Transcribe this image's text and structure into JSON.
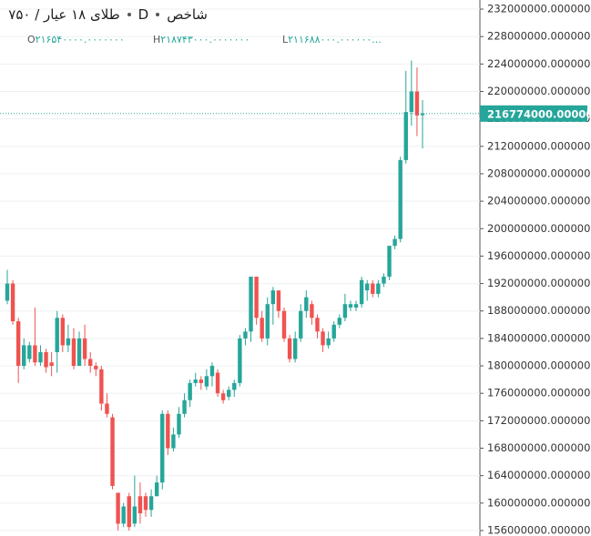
{
  "chart_data": {
    "type": "candlestick",
    "header": {
      "exchange": "شاخص",
      "interval": "D",
      "symbol": "طلای ۱۸ عیار / ۷۵۰"
    },
    "ohlc_legend": [
      {
        "key": "O",
        "text": "۲۱۶۵۴۰۰۰۰.۰۰۰۰۰۰۰"
      },
      {
        "key": "H",
        "text": "۲۱۸۷۴۳۰۰۰.۰۰۰۰۰۰۰"
      },
      {
        "key": "L",
        "text": "۲۱۱۶۸۸۰۰۰.۰۰۰۰۰۰..."
      }
    ],
    "up_color": "#26a69a",
    "down_color": "#ef5350",
    "grid": true,
    "ylim": [
      155200000,
      233330000
    ],
    "yticks": [
      {
        "value": 156000000,
        "label": "156000000.0000000"
      },
      {
        "value": 160000000,
        "label": "160000000.0000000"
      },
      {
        "value": 164000000,
        "label": "164000000.0000000"
      },
      {
        "value": 168000000,
        "label": "168000000.0000000"
      },
      {
        "value": 172000000,
        "label": "172000000.0000000"
      },
      {
        "value": 176000000,
        "label": "176000000.0000000"
      },
      {
        "value": 180000000,
        "label": "180000000.0000000"
      },
      {
        "value": 184000000,
        "label": "184000000.0000000"
      },
      {
        "value": 188000000,
        "label": "188000000.0000000"
      },
      {
        "value": 192000000,
        "label": "192000000.0000000"
      },
      {
        "value": 196000000,
        "label": "196000000.0000000"
      },
      {
        "value": 200000000,
        "label": "200000000.0000000"
      },
      {
        "value": 204000000,
        "label": "204000000.0000000"
      },
      {
        "value": 208000000,
        "label": "208000000.0000000"
      },
      {
        "value": 212000000,
        "label": "212000000.0000000"
      },
      {
        "value": 216000000,
        "label": "216000000.0000000"
      },
      {
        "value": 220000000,
        "label": "220000000.0000000"
      },
      {
        "value": 224000000,
        "label": "224000000.0000000"
      },
      {
        "value": 228000000,
        "label": "228000000.0000000"
      },
      {
        "value": 232000000,
        "label": "232000000.0000000"
      }
    ],
    "last_price": {
      "value": 216774000,
      "label": "216774000.0000000"
    },
    "open": [
      189500000,
      192000000,
      186500000,
      180000000,
      181000000,
      183000000,
      180500000,
      182000000,
      180500000,
      182000000,
      187000000,
      183000000,
      184000000,
      180000000,
      184000000,
      181000000,
      180000000,
      179500000,
      174500000,
      172500000,
      161500000,
      157000000,
      161000000,
      157000000,
      161000000,
      161000000,
      159000000,
      161000000,
      163000000,
      173000000,
      168000000,
      170000000,
      173000000,
      175000000,
      177500000,
      178000000,
      177000000,
      178500000,
      179000000,
      176000000,
      175500000,
      176500000,
      177500000,
      184000000,
      185000000,
      193000000,
      187000000,
      184000000,
      189000000,
      191000000,
      188000000,
      184000000,
      181000000,
      184000000,
      188000000,
      189000000,
      187000000,
      185000000,
      183000000,
      184000000,
      186000000,
      187000000,
      188500000,
      188500000,
      189000000,
      191000000,
      192000000,
      190500000,
      192000000,
      193000000,
      197500000,
      198500000,
      210000000,
      217000000,
      220000000,
      216540000
    ],
    "high": [
      194000000,
      192500000,
      187000000,
      184000000,
      183500000,
      188500000,
      183000000,
      182500000,
      182000000,
      188000000,
      187500000,
      186000000,
      185500000,
      185000000,
      186000000,
      182000000,
      180500000,
      180000000,
      176000000,
      173000000,
      161500000,
      160000000,
      161500000,
      164000000,
      163000000,
      161500000,
      162000000,
      164000000,
      173500000,
      173500000,
      171000000,
      174000000,
      176000000,
      178000000,
      179000000,
      178500000,
      179500000,
      180500000,
      179500000,
      176500000,
      177000000,
      178000000,
      184500000,
      185500000,
      193000000,
      193000000,
      188000000,
      190000000,
      191500000,
      191000000,
      188500000,
      184500000,
      185000000,
      189000000,
      191000000,
      189500000,
      187500000,
      185500000,
      185000000,
      186500000,
      187500000,
      190500000,
      189500000,
      189500000,
      193000000,
      192500000,
      192500000,
      192500000,
      193500000,
      197500000,
      199000000,
      210500000,
      223000000,
      224500000,
      223500000,
      218743000
    ],
    "low": [
      189000000,
      186000000,
      177500000,
      179500000,
      180500000,
      180000000,
      180000000,
      179000000,
      178500000,
      179000000,
      182000000,
      182000000,
      179500000,
      180000000,
      180000000,
      179000000,
      178500000,
      173500000,
      172500000,
      162000000,
      156000000,
      156500000,
      156000000,
      156500000,
      157000000,
      158000000,
      158000000,
      161000000,
      162000000,
      167000000,
      167500000,
      169500000,
      172500000,
      174000000,
      177000000,
      176500000,
      176500000,
      177000000,
      175500000,
      174500000,
      175000000,
      175500000,
      177000000,
      183000000,
      183500000,
      186000000,
      183500000,
      183000000,
      186000000,
      187000000,
      183500000,
      180500000,
      180500000,
      183500000,
      187000000,
      186000000,
      184000000,
      182000000,
      182500000,
      183500000,
      185500000,
      186500000,
      188000000,
      188000000,
      188500000,
      189500000,
      190000000,
      190000000,
      191500000,
      192500000,
      197000000,
      198000000,
      209500000,
      215000000,
      213500000,
      211688000
    ],
    "close": [
      192000000,
      186500000,
      180000000,
      183000000,
      183000000,
      180500000,
      182000000,
      179800000,
      180000000,
      187000000,
      183000000,
      184000000,
      180000000,
      184000000,
      181000000,
      180000000,
      179500000,
      174500000,
      173000000,
      162500000,
      157000000,
      159500000,
      156500000,
      159500000,
      158500000,
      159000000,
      161000000,
      163000000,
      173000000,
      168000000,
      170000000,
      173000000,
      175000000,
      177500000,
      178000000,
      177500000,
      178500000,
      180000000,
      176000000,
      175000000,
      176500000,
      177500000,
      184000000,
      185000000,
      193000000,
      187000000,
      184000000,
      189000000,
      191000000,
      188000000,
      184000000,
      181000000,
      184000000,
      188000000,
      190000000,
      187000000,
      185000000,
      183000000,
      184000000,
      186000000,
      187000000,
      189000000,
      189000000,
      189000000,
      192500000,
      192000000,
      190500000,
      192000000,
      193000000,
      197500000,
      198500000,
      210000000,
      217000000,
      220000000,
      216500000,
      216774000
    ]
  }
}
